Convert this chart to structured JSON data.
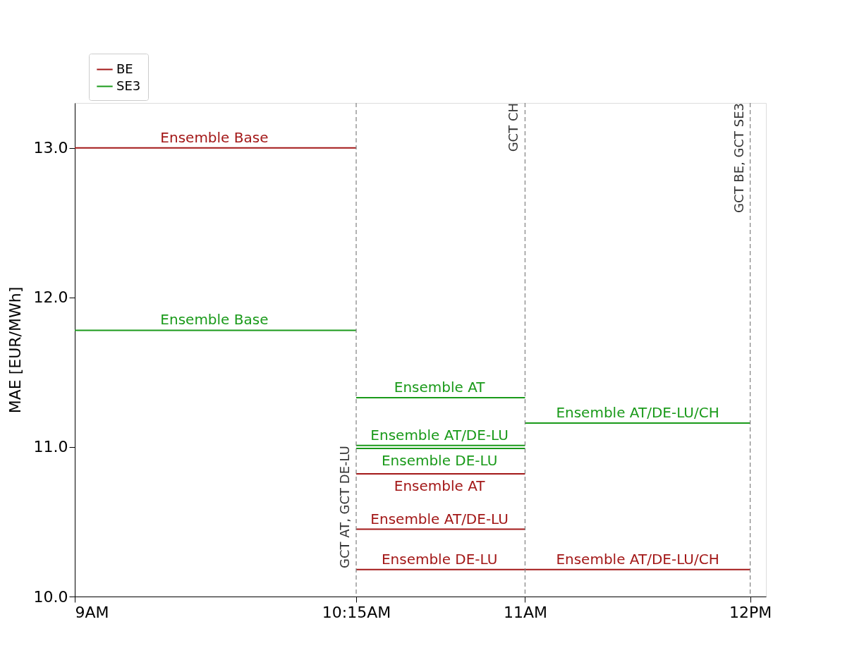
{
  "chart_data": {
    "type": "line",
    "ylabel": "MAE [EUR/MWh]",
    "series": [
      {
        "name": "BE",
        "color": "#a31818",
        "x": [
          9,
          10.25
        ],
        "values": [
          13.0,
          13.0
        ]
      },
      {
        "name": "SE3",
        "color": "#1a9a1a",
        "x": [
          9,
          10.25
        ],
        "values": [
          11.78,
          11.78
        ]
      },
      {
        "color": "#1a9a1a",
        "x": [
          10.25,
          11
        ],
        "values": [
          11.33,
          11.33
        ]
      },
      {
        "color": "#1a9a1a",
        "x": [
          11,
          12
        ],
        "values": [
          11.16,
          11.16
        ]
      },
      {
        "color": "#1a9a1a",
        "x": [
          10.25,
          11
        ],
        "values": [
          11.01,
          11.01
        ]
      },
      {
        "color": "#1a9a1a",
        "x": [
          10.25,
          11
        ],
        "values": [
          10.99,
          10.99
        ]
      },
      {
        "color": "#a31818",
        "x": [
          10.25,
          11
        ],
        "values": [
          10.82,
          10.82
        ]
      },
      {
        "color": "#a31818",
        "x": [
          10.25,
          11
        ],
        "values": [
          10.45,
          10.45
        ]
      },
      {
        "color": "#a31818",
        "x": [
          10.25,
          11,
          12
        ],
        "values": [
          10.18,
          10.18,
          10.18
        ]
      }
    ],
    "xlim": [
      9,
      12.07
    ],
    "ylim": [
      10,
      13.3
    ],
    "xticks": [
      {
        "value": 9,
        "label": "9AM"
      },
      {
        "value": 10.25,
        "label": "10:15AM"
      },
      {
        "value": 11,
        "label": "11AM"
      },
      {
        "value": 12,
        "label": "12PM"
      }
    ],
    "yticks": [
      {
        "value": 10,
        "label": "10.0"
      },
      {
        "value": 11,
        "label": "11.0"
      },
      {
        "value": 12,
        "label": "12.0"
      },
      {
        "value": 13,
        "label": "13.0"
      }
    ],
    "ref_lines": [
      {
        "axis": "x",
        "value": 10.25,
        "label": "GCT AT, GCT DE-LU",
        "color": "#808080",
        "line_style": "dashed"
      },
      {
        "axis": "x",
        "value": 11,
        "label": "GCT CH",
        "color": "#808080",
        "line_style": "dashed"
      },
      {
        "axis": "x",
        "value": 12,
        "label": "GCT BE, GCT SE3",
        "color": "#808080",
        "line_style": "dashed"
      }
    ],
    "annotations": [
      {
        "text": "Ensemble Base",
        "x": 9.62,
        "y": 13.0
      },
      {
        "text": "Ensemble Base",
        "x": 9.62,
        "y": 11.78
      },
      {
        "text": "Ensemble AT",
        "x": 10.62,
        "y": 11.33
      },
      {
        "text": "Ensemble AT/DE-LU/CH",
        "x": 11.5,
        "y": 11.16
      },
      {
        "text": "Ensemble AT/DE-LU",
        "x": 10.62,
        "y": 11.01
      },
      {
        "text": "Ensemble DE-LU",
        "x": 10.62,
        "y": 10.99
      },
      {
        "text": "Ensemble AT",
        "x": 10.62,
        "y": 10.82
      },
      {
        "text": "Ensemble AT/DE-LU",
        "x": 10.62,
        "y": 10.45
      },
      {
        "text": "Ensemble DE-LU",
        "x": 10.62,
        "y": 10.18
      },
      {
        "text": "Ensemble AT/DE-LU/CH",
        "x": 11.5,
        "y": 10.18
      }
    ],
    "legend": "top left",
    "grid": false,
    "marker": "none",
    "line_style": "solid"
  }
}
